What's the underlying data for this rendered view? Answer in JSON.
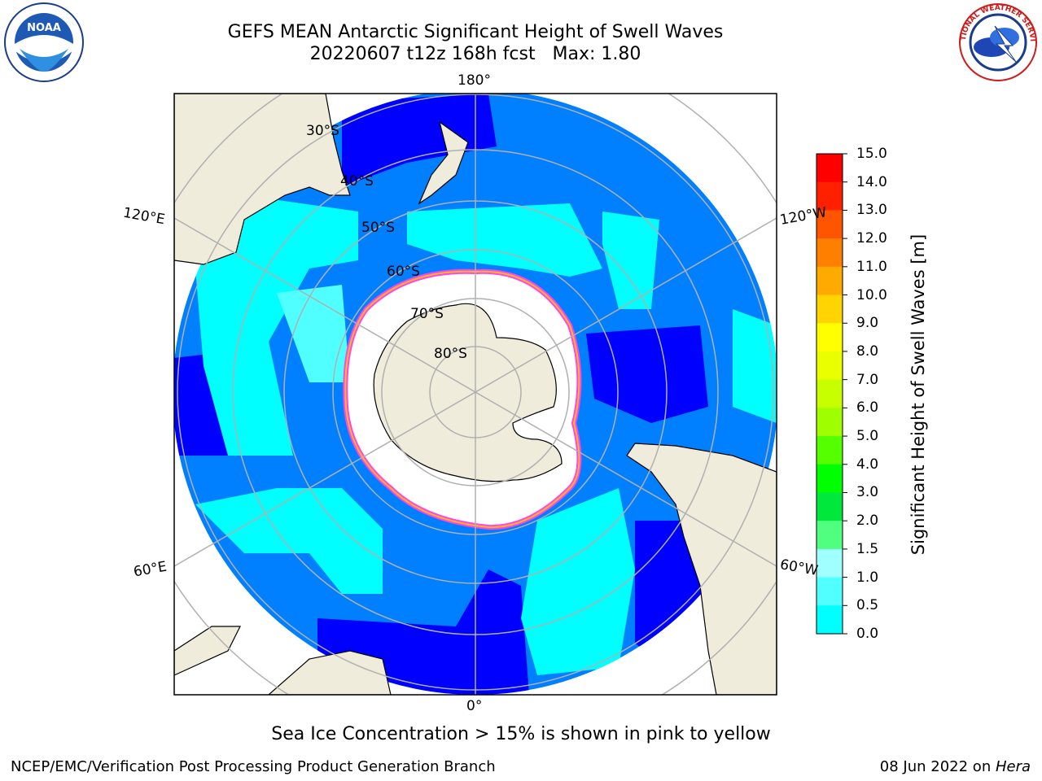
{
  "title": {
    "line1": "GEFS MEAN Antarctic Significant Height of Swell Waves",
    "line2": "20220607 t12z 168h fcst   Max: 1.80"
  },
  "logos": {
    "left": {
      "name": "noa-logo",
      "text": "NOAA"
    },
    "right": {
      "name": "nws-logo",
      "text": "NATIONAL WEATHER SERVICE"
    }
  },
  "map": {
    "projection": "south-polar-stereographic",
    "latitude_labels": [
      "30°S",
      "40°S",
      "50°S",
      "60°S",
      "70°S",
      "80°S"
    ],
    "longitude_labels": {
      "top": "180°",
      "bottom": "0°",
      "upper_left": "120°E",
      "lower_left": "60°E",
      "upper_right": "120°W",
      "lower_right": "60°W"
    },
    "colors": {
      "ocean_low": "#0000ff",
      "ocean_mid": "#0080ff",
      "ocean_high": "#00ffff",
      "ocean_light": "#50ffff",
      "land": "#efecdc",
      "ice_edge_pink": "#ff40ff",
      "ice_edge_yellow": "#ffc000",
      "sea_ice": "#ffffff",
      "grid": "#b0b0b0"
    }
  },
  "colorbar": {
    "title": "Significant Height of Swell Waves [m]",
    "ticks": [
      "15.0",
      "14.0",
      "13.0",
      "12.0",
      "11.0",
      "10.0",
      "9.0",
      "8.0",
      "7.0",
      "6.0",
      "5.0",
      "4.0",
      "3.0",
      "2.0",
      "1.5",
      "1.0",
      "0.5",
      "0.0"
    ],
    "colors": [
      "#ff0000",
      "#ff2000",
      "#ff5500",
      "#ff7f00",
      "#ffaa00",
      "#ffd400",
      "#ffff00",
      "#eaff00",
      "#c8ff00",
      "#9fff00",
      "#55ff00",
      "#00ff00",
      "#00e83c",
      "#50ff80",
      "#a0ffff",
      "#50ffff",
      "#00ffff",
      "#0080ff",
      "#0000ff"
    ]
  },
  "footnote": "Sea Ice Concentration > 15% is shown in pink to yellow",
  "credit": "NCEP/EMC/Verification Post Processing Product Generation Branch",
  "date_prefix": "08 Jun 2022 on ",
  "date_machine": "Hera"
}
